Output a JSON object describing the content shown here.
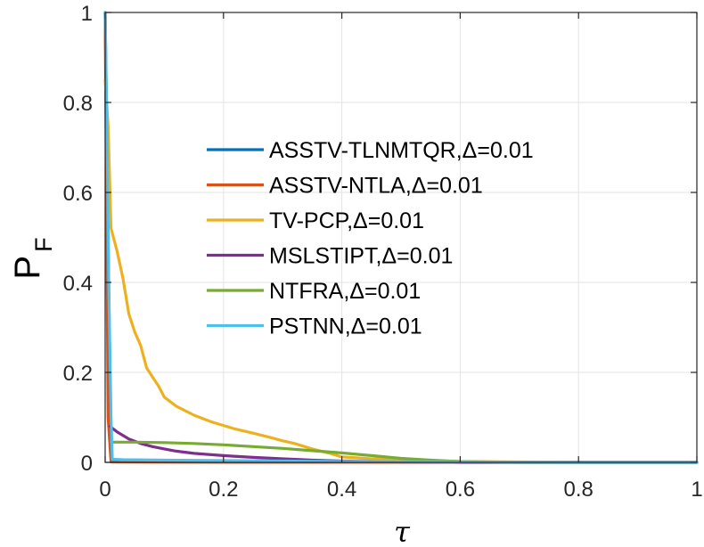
{
  "chart_data": {
    "type": "line",
    "title": "",
    "xlabel": "τ",
    "ylabel": {
      "main": "P",
      "sub": "F"
    },
    "xlim": [
      0,
      1
    ],
    "ylim": [
      0,
      1
    ],
    "xticks": [
      0,
      0.2,
      0.4,
      0.6,
      0.8,
      1
    ],
    "yticks": [
      0,
      0.2,
      0.4,
      0.6,
      0.8,
      1
    ],
    "xtick_labels": [
      "0",
      "0.2",
      "0.4",
      "0.6",
      "0.8",
      "1"
    ],
    "ytick_labels": [
      "0",
      "0.2",
      "0.4",
      "0.6",
      "0.8",
      "1"
    ],
    "grid": true,
    "legend_position": "center",
    "series": [
      {
        "name": "ASSTV-TLNMTQR,Δ=0.01",
        "color": "#0072BD",
        "x": [
          0,
          0.01,
          0.02,
          0.05,
          0.1,
          0.2,
          0.4,
          0.6,
          0.8,
          1
        ],
        "y": [
          1,
          0.008,
          0.004,
          0.003,
          0.002,
          0.001,
          0.0005,
          0.0002,
          0,
          0
        ]
      },
      {
        "name": "ASSTV-NTLA,Δ=0.01",
        "color": "#D95319",
        "x": [
          0,
          0.005,
          0.01,
          0.02,
          0.1,
          0.3,
          0.5,
          0.7,
          1
        ],
        "y": [
          1,
          0.1,
          0.001,
          0.0005,
          0.0003,
          0.0002,
          0.0001,
          0,
          0
        ]
      },
      {
        "name": "TV-PCP,Δ=0.01",
        "color": "#EDB120",
        "x": [
          0,
          0.005,
          0.01,
          0.02,
          0.03,
          0.04,
          0.05,
          0.06,
          0.07,
          0.08,
          0.09,
          0.1,
          0.12,
          0.15,
          0.18,
          0.2,
          0.22,
          0.25,
          0.28,
          0.3,
          0.32,
          0.35,
          0.38,
          0.4,
          0.45,
          0.5,
          0.55,
          0.6,
          0.7,
          0.8,
          0.9,
          1
        ],
        "y": [
          0.85,
          0.75,
          0.52,
          0.47,
          0.41,
          0.33,
          0.29,
          0.26,
          0.21,
          0.19,
          0.17,
          0.145,
          0.125,
          0.105,
          0.09,
          0.082,
          0.074,
          0.065,
          0.055,
          0.048,
          0.042,
          0.03,
          0.02,
          0.012,
          0.008,
          0.006,
          0.004,
          0.002,
          0.001,
          0,
          0,
          0
        ]
      },
      {
        "name": "MSLSTIPT,Δ=0.01",
        "color": "#7E2F8E",
        "x": [
          0.008,
          0.02,
          0.04,
          0.06,
          0.08,
          0.1,
          0.12,
          0.15,
          0.2,
          0.25,
          0.3,
          0.35,
          0.4,
          0.5,
          0.6,
          0.7,
          0.8,
          0.9,
          1
        ],
        "y": [
          0.08,
          0.068,
          0.052,
          0.042,
          0.035,
          0.03,
          0.025,
          0.02,
          0.015,
          0.011,
          0.008,
          0.005,
          0.003,
          0.001,
          0,
          0,
          0,
          0,
          0
        ]
      },
      {
        "name": "NTFRA,Δ=0.01",
        "color": "#77AC30",
        "x": [
          0.01,
          0.05,
          0.1,
          0.15,
          0.2,
          0.25,
          0.3,
          0.35,
          0.4,
          0.45,
          0.5,
          0.55,
          0.6,
          0.65,
          0.7,
          0.8,
          0.9,
          1
        ],
        "y": [
          0.045,
          0.045,
          0.044,
          0.042,
          0.039,
          0.035,
          0.031,
          0.026,
          0.021,
          0.015,
          0.009,
          0.005,
          0.002,
          0.001,
          0,
          0,
          0,
          0
        ]
      },
      {
        "name": "PSTNN,Δ=0.01",
        "color": "#4DBEEE",
        "x": [
          0,
          0.003,
          0.006,
          0.01,
          0.012,
          0.03,
          0.1,
          0.2,
          0.4,
          0.6,
          0.8,
          1
        ],
        "y": [
          1,
          0.75,
          0.4,
          0.1,
          0.007,
          0.006,
          0.005,
          0.004,
          0.002,
          0.001,
          0,
          0
        ]
      }
    ]
  }
}
